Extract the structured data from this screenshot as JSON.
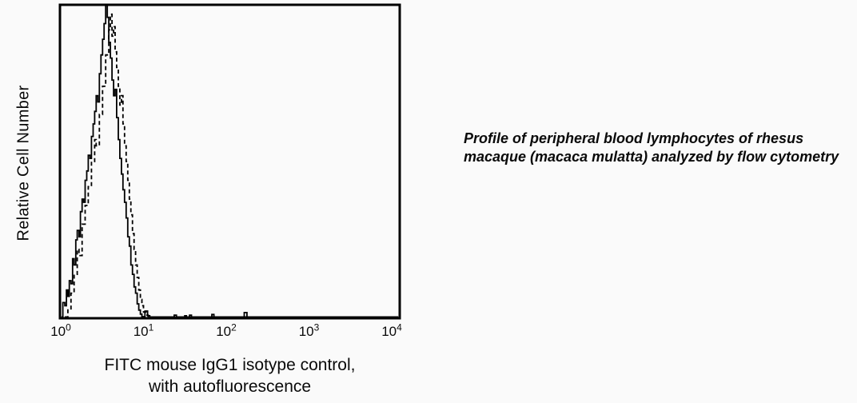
{
  "figure": {
    "y_axis": {
      "label": "Relative Cell Number"
    },
    "x_axis": {
      "title_line1": "FITC mouse IgG1 isotype control,",
      "title_line2": "with autofluorescence",
      "ticks": [
        {
          "base": "10",
          "exp": "0"
        },
        {
          "base": "10",
          "exp": "1"
        },
        {
          "base": "10",
          "exp": "2"
        },
        {
          "base": "10",
          "exp": "3"
        },
        {
          "base": "10",
          "exp": "4"
        }
      ]
    },
    "caption": {
      "line1": "Profile of peripheral blood lymphocytes of rhesus",
      "line2": "macaque (macaca mulatta) analyzed by flow cytometry"
    }
  },
  "colors": {
    "stroke": "#000000",
    "text": "#0a0a0a",
    "background": "#fafafa"
  },
  "chart_data": {
    "type": "line",
    "subtype": "flow-cytometry-histogram",
    "title": "",
    "xlabel": "FITC mouse IgG1 isotype control, with autofluorescence",
    "ylabel": "Relative Cell Number",
    "x_scale": "log",
    "x_ticks": [
      1,
      10,
      100,
      1000,
      10000
    ],
    "x_range": [
      1,
      12500
    ],
    "y_range_relative_percent": [
      0,
      100
    ],
    "grid": false,
    "legend": "none",
    "series": [
      {
        "name": "solid-curve",
        "style": "solid",
        "points": [
          [
            1.02,
            0.4
          ],
          [
            1.06,
            5
          ],
          [
            1.12,
            4
          ],
          [
            1.17,
            9
          ],
          [
            1.22,
            7
          ],
          [
            1.27,
            12
          ],
          [
            1.33,
            11
          ],
          [
            1.39,
            19
          ],
          [
            1.45,
            17
          ],
          [
            1.52,
            25
          ],
          [
            1.58,
            28
          ],
          [
            1.66,
            26
          ],
          [
            1.73,
            34
          ],
          [
            1.81,
            38
          ],
          [
            1.89,
            37
          ],
          [
            1.97,
            44
          ],
          [
            2.06,
            47
          ],
          [
            2.15,
            52
          ],
          [
            2.25,
            51
          ],
          [
            2.35,
            58
          ],
          [
            2.46,
            62
          ],
          [
            2.57,
            66
          ],
          [
            2.68,
            71
          ],
          [
            2.8,
            69
          ],
          [
            2.93,
            78
          ],
          [
            3.06,
            84
          ],
          [
            3.2,
            89
          ],
          [
            3.34,
            94
          ],
          [
            3.49,
            100
          ],
          [
            3.65,
            96
          ],
          [
            3.81,
            88
          ],
          [
            3.98,
            83
          ],
          [
            4.16,
            76
          ],
          [
            4.35,
            71
          ],
          [
            4.54,
            73
          ],
          [
            4.74,
            64
          ],
          [
            4.96,
            57
          ],
          [
            5.18,
            51
          ],
          [
            5.41,
            46
          ],
          [
            5.65,
            41
          ],
          [
            5.9,
            37
          ],
          [
            6.17,
            32
          ],
          [
            6.45,
            26
          ],
          [
            6.74,
            23
          ],
          [
            7.04,
            17
          ],
          [
            7.36,
            14
          ],
          [
            7.69,
            10
          ],
          [
            8.03,
            8
          ],
          [
            8.39,
            4.6
          ],
          [
            8.77,
            2.6
          ],
          [
            9.16,
            1.3
          ],
          [
            9.57,
            0.5
          ],
          [
            10.4,
            2.3
          ],
          [
            11.2,
            0.8
          ],
          [
            11.9,
            0.4
          ],
          [
            13,
            0.4
          ],
          [
            23.5,
            1
          ],
          [
            25,
            0.4
          ],
          [
            36,
            1
          ],
          [
            38,
            0.4
          ],
          [
            67,
            1.2
          ],
          [
            71,
            0.4
          ],
          [
            165,
            1.8
          ],
          [
            178,
            0.4
          ],
          [
            12000,
            0.4
          ]
        ]
      },
      {
        "name": "dashed-curve",
        "style": "dashed",
        "points": [
          [
            1.12,
            0.4
          ],
          [
            1.22,
            3
          ],
          [
            1.33,
            8
          ],
          [
            1.45,
            14
          ],
          [
            1.58,
            22
          ],
          [
            1.66,
            20
          ],
          [
            1.81,
            30
          ],
          [
            1.97,
            36
          ],
          [
            2.15,
            42
          ],
          [
            2.35,
            50
          ],
          [
            2.57,
            57
          ],
          [
            2.68,
            55
          ],
          [
            2.93,
            65
          ],
          [
            3.2,
            74
          ],
          [
            3.49,
            84
          ],
          [
            3.81,
            92
          ],
          [
            3.98,
            97
          ],
          [
            4.16,
            90
          ],
          [
            4.35,
            93
          ],
          [
            4.54,
            85
          ],
          [
            4.74,
            80
          ],
          [
            4.96,
            74
          ],
          [
            5.18,
            68
          ],
          [
            5.41,
            71
          ],
          [
            5.65,
            62
          ],
          [
            5.9,
            55
          ],
          [
            6.17,
            50
          ],
          [
            6.45,
            44
          ],
          [
            6.74,
            38
          ],
          [
            7.04,
            33
          ],
          [
            7.36,
            27
          ],
          [
            7.69,
            22
          ],
          [
            8.03,
            17
          ],
          [
            8.39,
            13
          ],
          [
            8.77,
            9
          ],
          [
            9.16,
            6
          ],
          [
            9.57,
            4
          ],
          [
            10,
            2
          ],
          [
            10.7,
            1
          ],
          [
            11.4,
            0.4
          ],
          [
            30,
            0.8
          ],
          [
            33,
            0.4
          ],
          [
            12000,
            0.4
          ]
        ]
      }
    ]
  }
}
